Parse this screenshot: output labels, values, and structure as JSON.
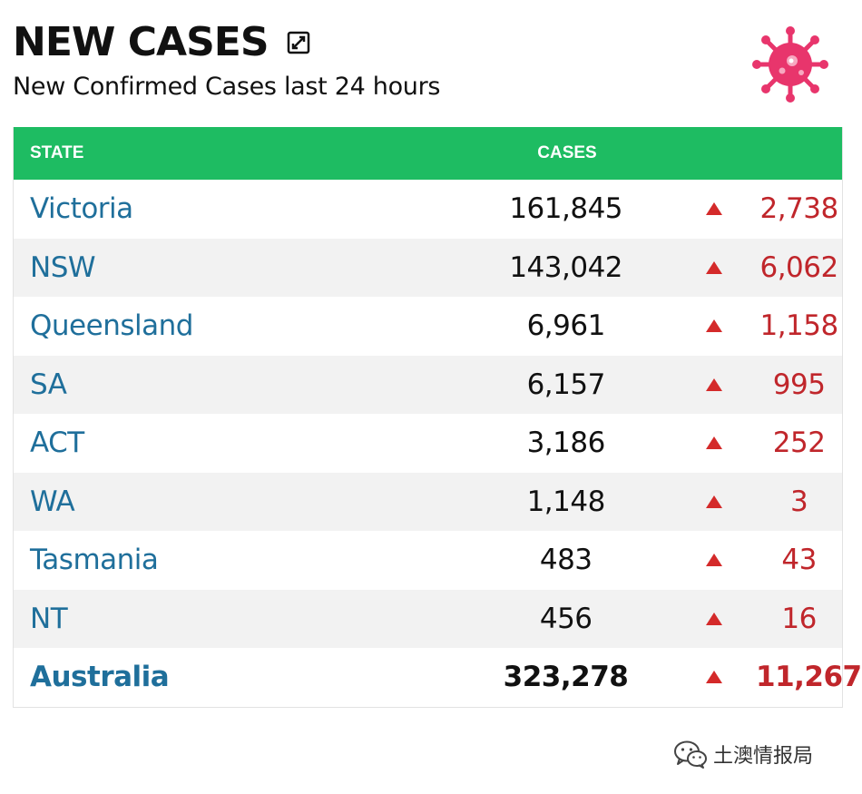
{
  "header": {
    "title": "NEW CASES",
    "subtitle": "New Confirmed Cases last 24 hours"
  },
  "table": {
    "columns": {
      "state": "STATE",
      "cases": "CASES"
    },
    "rows": [
      {
        "state": "Victoria",
        "cases": "161,845",
        "delta": "2,738"
      },
      {
        "state": "NSW",
        "cases": "143,042",
        "delta": "6,062"
      },
      {
        "state": "Queensland",
        "cases": "6,961",
        "delta": "1,158"
      },
      {
        "state": "SA",
        "cases": "6,157",
        "delta": "995"
      },
      {
        "state": "ACT",
        "cases": "3,186",
        "delta": "252"
      },
      {
        "state": "WA",
        "cases": "1,148",
        "delta": "3"
      },
      {
        "state": "Tasmania",
        "cases": "483",
        "delta": "43"
      },
      {
        "state": "NT",
        "cases": "456",
        "delta": "16"
      }
    ],
    "total": {
      "state": "Australia",
      "cases": "323,278",
      "delta": "11,267"
    }
  },
  "watermark": {
    "text": "土澳情报局"
  },
  "colors": {
    "header_bg": "#1ebc62",
    "state_text": "#1f6f9b",
    "delta_text": "#c0262b",
    "arrow": "#d42a2a",
    "virus": "#e8356c"
  },
  "icons": {
    "expand": "expand-icon",
    "virus": "virus-icon",
    "arrow": "triangle-up-icon",
    "watermark": "wechat-icon"
  }
}
